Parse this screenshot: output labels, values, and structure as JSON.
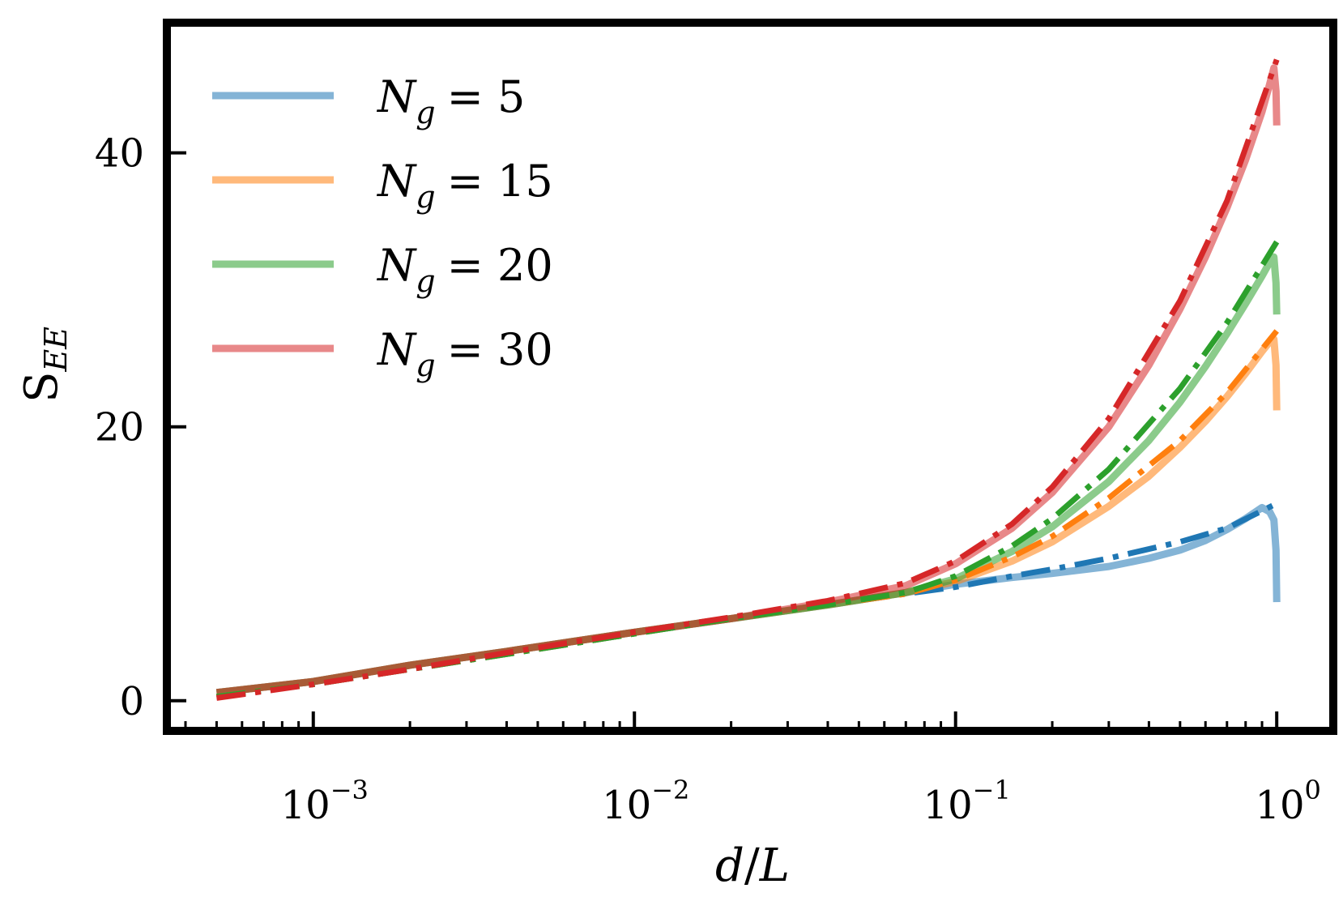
{
  "chart_data": {
    "type": "line",
    "xscale": "log",
    "xlim": [
      0.00035,
      1.5
    ],
    "ylim": [
      -2.2,
      49.5
    ],
    "xlabel": {
      "var": "d",
      "sep": "/",
      "var2": "L"
    },
    "ylabel": {
      "base": "S",
      "sub": "EE"
    },
    "x_ticks": [
      {
        "value": 0.001,
        "base": "10",
        "exp": "−3"
      },
      {
        "value": 0.01,
        "base": "10",
        "exp": "−2"
      },
      {
        "value": 0.1,
        "base": "10",
        "exp": "−1"
      },
      {
        "value": 1,
        "base": "10",
        "exp": "0"
      }
    ],
    "y_ticks": [
      {
        "value": 0,
        "label": "0"
      },
      {
        "value": 20,
        "label": "20"
      },
      {
        "value": 40,
        "label": "40"
      }
    ],
    "grid": false,
    "legend_position": "top-left",
    "series": [
      {
        "name": "N_g = 5",
        "label": {
          "var": "N",
          "sub": "g",
          "eq": "= 5"
        },
        "color": "#1f77b4",
        "solid": {
          "x": [
            0.0005,
            0.001,
            0.002,
            0.004,
            0.01,
            0.02,
            0.04,
            0.07,
            0.1,
            0.15,
            0.2,
            0.3,
            0.4,
            0.5,
            0.6,
            0.7,
            0.8,
            0.9,
            0.95,
            0.98,
            0.995,
            1.0
          ],
          "y": [
            0.6,
            1.4,
            2.6,
            3.6,
            5.0,
            6.0,
            7.0,
            7.9,
            8.5,
            9.0,
            9.3,
            9.8,
            10.4,
            11.0,
            11.7,
            12.5,
            13.3,
            14.1,
            13.8,
            13.2,
            11.0,
            7.2
          ]
        },
        "dashdot": {
          "x": [
            0.0005,
            0.001,
            0.002,
            0.004,
            0.01,
            0.02,
            0.04,
            0.07,
            0.1,
            0.15,
            0.2,
            0.3,
            0.5,
            0.7,
            1.0
          ],
          "y": [
            0.3,
            1.2,
            2.3,
            3.4,
            4.9,
            6.0,
            7.0,
            7.8,
            8.3,
            9.1,
            9.6,
            10.4,
            11.6,
            12.6,
            14.4
          ]
        }
      },
      {
        "name": "N_g = 15",
        "label": {
          "var": "N",
          "sub": "g",
          "eq": "= 15"
        },
        "color": "#ff7f0e",
        "solid": {
          "x": [
            0.0005,
            0.001,
            0.002,
            0.004,
            0.01,
            0.02,
            0.04,
            0.07,
            0.1,
            0.15,
            0.2,
            0.3,
            0.4,
            0.5,
            0.6,
            0.7,
            0.8,
            0.9,
            0.95,
            0.98,
            0.995,
            1.0
          ],
          "y": [
            0.6,
            1.4,
            2.6,
            3.6,
            5.0,
            6.0,
            7.0,
            7.9,
            8.7,
            10.2,
            11.6,
            14.2,
            16.4,
            18.5,
            20.4,
            22.2,
            23.9,
            25.5,
            26.2,
            26.4,
            24.5,
            21.2
          ]
        },
        "dashdot": {
          "x": [
            0.0005,
            0.001,
            0.002,
            0.004,
            0.01,
            0.02,
            0.04,
            0.07,
            0.1,
            0.15,
            0.2,
            0.3,
            0.5,
            0.7,
            1.0
          ],
          "y": [
            0.3,
            1.2,
            2.3,
            3.4,
            4.9,
            6.0,
            7.0,
            7.8,
            8.8,
            10.5,
            12.0,
            14.8,
            19.0,
            22.5,
            27.0
          ]
        }
      },
      {
        "name": "N_g = 20",
        "label": {
          "var": "N",
          "sub": "g",
          "eq": "= 20"
        },
        "color": "#2ca02c",
        "solid": {
          "x": [
            0.0005,
            0.001,
            0.002,
            0.004,
            0.01,
            0.02,
            0.04,
            0.07,
            0.1,
            0.15,
            0.2,
            0.3,
            0.4,
            0.5,
            0.6,
            0.7,
            0.8,
            0.9,
            0.95,
            0.98,
            0.995,
            1.0
          ],
          "y": [
            0.6,
            1.4,
            2.6,
            3.6,
            5.0,
            6.0,
            7.0,
            7.9,
            8.9,
            10.9,
            12.7,
            16.0,
            19.0,
            21.8,
            24.4,
            26.8,
            29.0,
            31.0,
            32.0,
            32.4,
            30.5,
            28.2
          ]
        },
        "dashdot": {
          "x": [
            0.0005,
            0.001,
            0.002,
            0.004,
            0.01,
            0.02,
            0.04,
            0.07,
            0.1,
            0.15,
            0.2,
            0.3,
            0.5,
            0.7,
            1.0
          ],
          "y": [
            0.3,
            1.2,
            2.3,
            3.4,
            4.9,
            6.0,
            7.0,
            7.9,
            9.1,
            11.3,
            13.3,
            16.9,
            22.8,
            27.6,
            33.5
          ]
        }
      },
      {
        "name": "N_g = 30",
        "label": {
          "var": "N",
          "sub": "g",
          "eq": "= 30"
        },
        "color": "#d62728",
        "solid": {
          "x": [
            0.0005,
            0.001,
            0.002,
            0.004,
            0.01,
            0.02,
            0.04,
            0.07,
            0.1,
            0.15,
            0.2,
            0.3,
            0.4,
            0.5,
            0.6,
            0.7,
            0.8,
            0.9,
            0.95,
            0.98,
            0.995,
            1.0
          ],
          "y": [
            0.6,
            1.4,
            2.6,
            3.6,
            5.0,
            6.0,
            7.2,
            8.4,
            10.0,
            12.6,
            15.2,
            20.0,
            24.5,
            28.6,
            32.4,
            36.0,
            39.5,
            43.0,
            45.0,
            46.2,
            44.5,
            42.0
          ]
        },
        "dashdot": {
          "x": [
            0.0005,
            0.001,
            0.002,
            0.004,
            0.01,
            0.02,
            0.04,
            0.07,
            0.1,
            0.15,
            0.2,
            0.3,
            0.5,
            0.7,
            1.0
          ],
          "y": [
            0.2,
            1.2,
            2.3,
            3.5,
            5.0,
            6.1,
            7.3,
            8.6,
            10.2,
            12.9,
            15.6,
            20.6,
            29.2,
            36.5,
            46.8
          ]
        }
      }
    ]
  }
}
